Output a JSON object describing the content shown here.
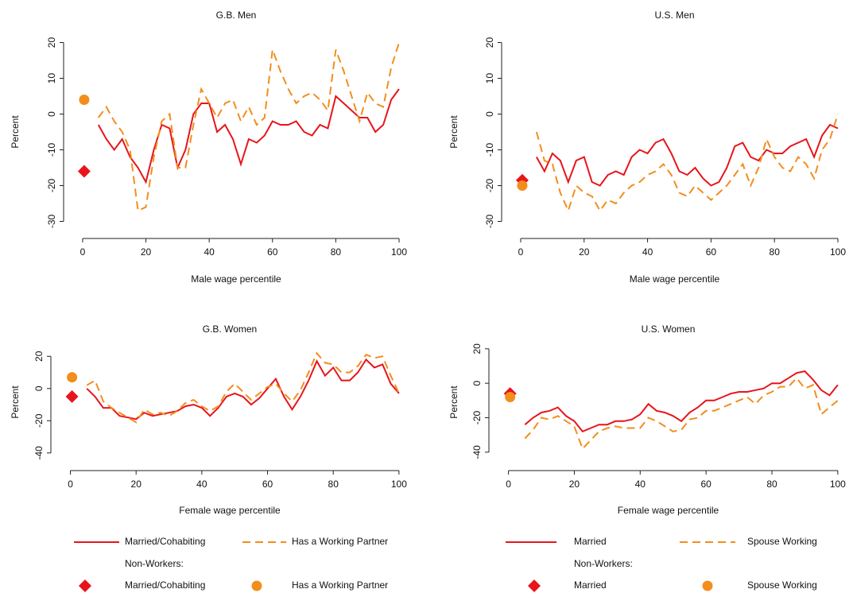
{
  "chart_data": [
    {
      "type": "line",
      "title": "G.B. Men",
      "xlabel": "Male wage percentile",
      "ylabel": "Percent",
      "xlim": [
        -4,
        101
      ],
      "xticks": [
        0,
        20,
        40,
        60,
        80,
        100
      ],
      "ylim": [
        -33,
        23
      ],
      "yticks": [
        -30,
        -20,
        -10,
        0,
        10,
        20
      ],
      "x": [
        5,
        7.5,
        10,
        12.5,
        15,
        17.5,
        20,
        22.5,
        25,
        27.5,
        30,
        32.5,
        35,
        37.5,
        40,
        42.5,
        45,
        47.5,
        50,
        52.5,
        55,
        57.5,
        60,
        62.5,
        65,
        67.5,
        70,
        72.5,
        75,
        77.5,
        80,
        82.5,
        85,
        87.5,
        90,
        92.5,
        95,
        97.5,
        100
      ],
      "series": [
        {
          "color": "#e8141b",
          "style": "solid",
          "values": [
            -3,
            -7,
            -10,
            -7,
            -12,
            -15,
            -19,
            -10,
            -3,
            -4,
            -15,
            -10,
            0,
            3,
            3,
            -5,
            -3,
            -7,
            -14,
            -7,
            -8,
            -6,
            -2,
            -3,
            -3,
            -2,
            -5,
            -6,
            -3,
            -4,
            5,
            3,
            1,
            -1,
            -1,
            -5,
            -3,
            4,
            7
          ]
        },
        {
          "color": "#f28e1c",
          "style": "dashed",
          "values": [
            -1,
            2,
            -2,
            -5,
            -10,
            -27,
            -26,
            -12,
            -2,
            0,
            -15,
            -15,
            -3,
            7,
            3,
            -1,
            3,
            4,
            -2,
            2,
            -3,
            -1,
            18,
            12,
            7,
            3,
            5,
            6,
            4,
            1,
            18,
            12,
            5,
            -2,
            6,
            3,
            2,
            13,
            20
          ]
        },
        {
          "color": "#e8141b",
          "marker": "diamond",
          "x": [
            0.5
          ],
          "values": [
            -16
          ]
        },
        {
          "color": "#f28e1c",
          "marker": "circle",
          "x": [
            0.5
          ],
          "values": [
            4
          ]
        }
      ]
    },
    {
      "type": "line",
      "title": "U.S. Men",
      "xlabel": "Male wage percentile",
      "ylabel": "Percent",
      "xlim": [
        -4,
        101
      ],
      "xticks": [
        0,
        20,
        40,
        60,
        80,
        100
      ],
      "ylim": [
        -33,
        23
      ],
      "yticks": [
        -30,
        -20,
        -10,
        0,
        10,
        20
      ],
      "x": [
        5,
        7.5,
        10,
        12.5,
        15,
        17.5,
        20,
        22.5,
        25,
        27.5,
        30,
        32.5,
        35,
        37.5,
        40,
        42.5,
        45,
        47.5,
        50,
        52.5,
        55,
        57.5,
        60,
        62.5,
        65,
        67.5,
        70,
        72.5,
        75,
        77.5,
        80,
        82.5,
        85,
        87.5,
        90,
        92.5,
        95,
        97.5,
        100
      ],
      "series": [
        {
          "color": "#e8141b",
          "style": "solid",
          "values": [
            -12,
            -16,
            -11,
            -13,
            -19,
            -13,
            -12,
            -19,
            -20,
            -17,
            -16,
            -17,
            -12,
            -10,
            -11,
            -8,
            -7,
            -11,
            -16,
            -17,
            -15,
            -18,
            -20,
            -19,
            -15,
            -9,
            -8,
            -12,
            -13,
            -10,
            -11,
            -11,
            -9,
            -8,
            -7,
            -12,
            -6,
            -3,
            -4
          ]
        },
        {
          "color": "#f28e1c",
          "style": "dashed",
          "values": [
            -5,
            -13,
            -14,
            -22,
            -27,
            -20,
            -22,
            -23,
            -27,
            -24,
            -25,
            -22,
            -20,
            -19,
            -17,
            -16,
            -14,
            -17,
            -22,
            -23,
            -20,
            -22,
            -24,
            -22,
            -20,
            -17,
            -14,
            -20,
            -15,
            -7,
            -12,
            -15,
            -16,
            -12,
            -14,
            -18,
            -10,
            -7,
            0
          ]
        },
        {
          "color": "#e8141b",
          "marker": "diamond",
          "x": [
            0.5
          ],
          "values": [
            -18.5
          ]
        },
        {
          "color": "#f28e1c",
          "marker": "circle",
          "x": [
            0.5
          ],
          "values": [
            -20
          ]
        }
      ]
    },
    {
      "type": "line",
      "title": "G.B. Women",
      "xlabel": "Female wage percentile",
      "ylabel": "Percent",
      "xlim": [
        -4,
        101
      ],
      "xticks": [
        0,
        20,
        40,
        60,
        80,
        100
      ],
      "ylim": [
        -47,
        30
      ],
      "yticks": [
        -40,
        -20,
        0,
        20
      ],
      "x": [
        5,
        7.5,
        10,
        12.5,
        15,
        17.5,
        20,
        22.5,
        25,
        27.5,
        30,
        32.5,
        35,
        37.5,
        40,
        42.5,
        45,
        47.5,
        50,
        52.5,
        55,
        57.5,
        60,
        62.5,
        65,
        67.5,
        70,
        72.5,
        75,
        77.5,
        80,
        82.5,
        85,
        87.5,
        90,
        92.5,
        95,
        97.5,
        100
      ],
      "legend_title": "Non-Workers:",
      "series": [
        {
          "name": "Married/Cohabiting",
          "color": "#e8141b",
          "style": "solid",
          "values": [
            0,
            -5,
            -12,
            -12,
            -17,
            -18,
            -19,
            -15,
            -17,
            -16,
            -15,
            -14,
            -11,
            -10,
            -12,
            -17,
            -12,
            -5,
            -3,
            -5,
            -10,
            -6,
            0,
            6,
            -5,
            -13,
            -5,
            5,
            17,
            8,
            13,
            5,
            5,
            10,
            18,
            13,
            15,
            3,
            -3
          ]
        },
        {
          "name": "Has a Working Partner",
          "color": "#f28e1c",
          "style": "dashed",
          "values": [
            2,
            5,
            -8,
            -12,
            -15,
            -18,
            -21,
            -13,
            -16,
            -15,
            -17,
            -14,
            -9,
            -7,
            -11,
            -14,
            -11,
            -2,
            3,
            -2,
            -7,
            -3,
            1,
            3,
            -3,
            -8,
            -1,
            10,
            22,
            16,
            15,
            10,
            10,
            14,
            21,
            19,
            20,
            8,
            -3
          ]
        },
        {
          "name": "Married/Cohabiting",
          "color": "#e8141b",
          "marker": "diamond",
          "x": [
            0.5
          ],
          "values": [
            -5
          ]
        },
        {
          "name": "Has a Working Partner",
          "color": "#f28e1c",
          "marker": "circle",
          "x": [
            0.5
          ],
          "values": [
            7
          ]
        }
      ]
    },
    {
      "type": "line",
      "title": "U.S. Women",
      "xlabel": "Female wage percentile",
      "ylabel": "Percent",
      "xlim": [
        -4,
        101
      ],
      "xticks": [
        0,
        20,
        40,
        60,
        80,
        100
      ],
      "ylim": [
        -47,
        25
      ],
      "yticks": [
        -40,
        -20,
        0,
        20
      ],
      "x": [
        5,
        7.5,
        10,
        12.5,
        15,
        17.5,
        20,
        22.5,
        25,
        27.5,
        30,
        32.5,
        35,
        37.5,
        40,
        42.5,
        45,
        47.5,
        50,
        52.5,
        55,
        57.5,
        60,
        62.5,
        65,
        67.5,
        70,
        72.5,
        75,
        77.5,
        80,
        82.5,
        85,
        87.5,
        90,
        92.5,
        95,
        97.5,
        100
      ],
      "legend_title": "Non-Workers:",
      "series": [
        {
          "name": "Married",
          "color": "#e8141b",
          "style": "solid",
          "values": [
            -24,
            -20,
            -17,
            -16,
            -14,
            -19,
            -22,
            -28,
            -26,
            -24,
            -24,
            -22,
            -22,
            -21,
            -18,
            -12,
            -16,
            -17,
            -19,
            -22,
            -17,
            -14,
            -10,
            -10,
            -8,
            -6,
            -5,
            -5,
            -4,
            -3,
            0,
            0,
            3,
            6,
            7,
            2,
            -4,
            -7,
            -1
          ]
        },
        {
          "name": "Spouse Working",
          "color": "#f28e1c",
          "style": "dashed",
          "values": [
            -32,
            -27,
            -20,
            -21,
            -19,
            -22,
            -25,
            -38,
            -33,
            -28,
            -26,
            -25,
            -26,
            -26,
            -26,
            -20,
            -22,
            -25,
            -28,
            -27,
            -21,
            -20,
            -16,
            -16,
            -14,
            -12,
            -10,
            -8,
            -12,
            -7,
            -5,
            -2,
            -2,
            3,
            -3,
            -1,
            -18,
            -14,
            -10
          ]
        },
        {
          "name": "Married",
          "color": "#e8141b",
          "marker": "diamond",
          "x": [
            0.5
          ],
          "values": [
            -6
          ]
        },
        {
          "name": "Spouse Working",
          "color": "#f28e1c",
          "marker": "circle",
          "x": [
            0.5
          ],
          "values": [
            -8
          ]
        }
      ]
    }
  ]
}
